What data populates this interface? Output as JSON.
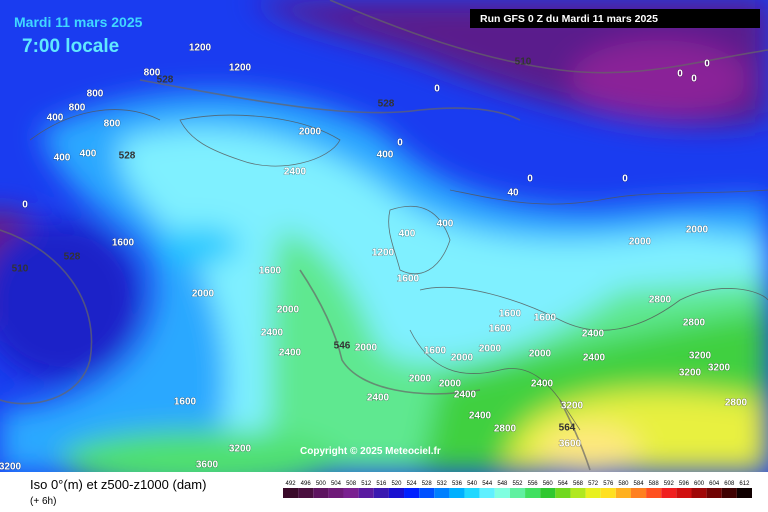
{
  "header": {
    "date": "Mardi 11 mars 2025",
    "time": "7:00 locale",
    "run": "Run GFS 0 Z du Mardi 11 mars 2025"
  },
  "copyright": "Copyright © 2025 Meteociel.fr",
  "footer": {
    "title": "Iso 0°(m) et z500-z1000 (dam)",
    "step": "(+ 6h)"
  },
  "legend": {
    "values": [
      492,
      496,
      500,
      504,
      508,
      512,
      516,
      520,
      524,
      528,
      532,
      536,
      540,
      544,
      548,
      552,
      556,
      560,
      564,
      568,
      572,
      576,
      580,
      584,
      588,
      592,
      596,
      600,
      604,
      608,
      612
    ],
    "colors": [
      "#3a0a2a",
      "#4a0f3f",
      "#5e1460",
      "#6e1a78",
      "#7a2090",
      "#5a1aa0",
      "#3a18b0",
      "#1a10d0",
      "#0020ff",
      "#0050ff",
      "#0080ff",
      "#00b0ff",
      "#20d8ff",
      "#60f0ff",
      "#80ffe0",
      "#60f0a0",
      "#40e060",
      "#30c830",
      "#70d820",
      "#b0e820",
      "#e8f020",
      "#ffe020",
      "#ffb020",
      "#ff8020",
      "#ff5020",
      "#f02020",
      "#d01010",
      "#a00808",
      "#700404",
      "#400202",
      "#100000"
    ]
  },
  "map": {
    "labels": [
      "1200",
      "800",
      "800",
      "400",
      "800",
      "400",
      "400",
      "800",
      "528",
      "528",
      "0",
      "528",
      "0",
      "400",
      "2400",
      "0",
      "0",
      "40",
      "400",
      "400",
      "1200",
      "1600",
      "1600",
      "1600",
      "510",
      "528",
      "2000",
      "2000",
      "2400",
      "2400",
      "546",
      "2000",
      "1600",
      "2400",
      "2000",
      "2000",
      "2400",
      "2400",
      "2800",
      "564",
      "3600",
      "3200",
      "2000",
      "2000",
      "2800",
      "2800",
      "3200",
      "3200",
      "3200",
      "2800",
      "2400",
      "2400",
      "2400",
      "2000",
      "1600",
      "1600",
      "1600",
      "2000",
      "3200",
      "3600",
      "3200",
      "510",
      "0",
      "0",
      "0",
      "0",
      "1600",
      "2000",
      "1200",
      "2000"
    ]
  }
}
